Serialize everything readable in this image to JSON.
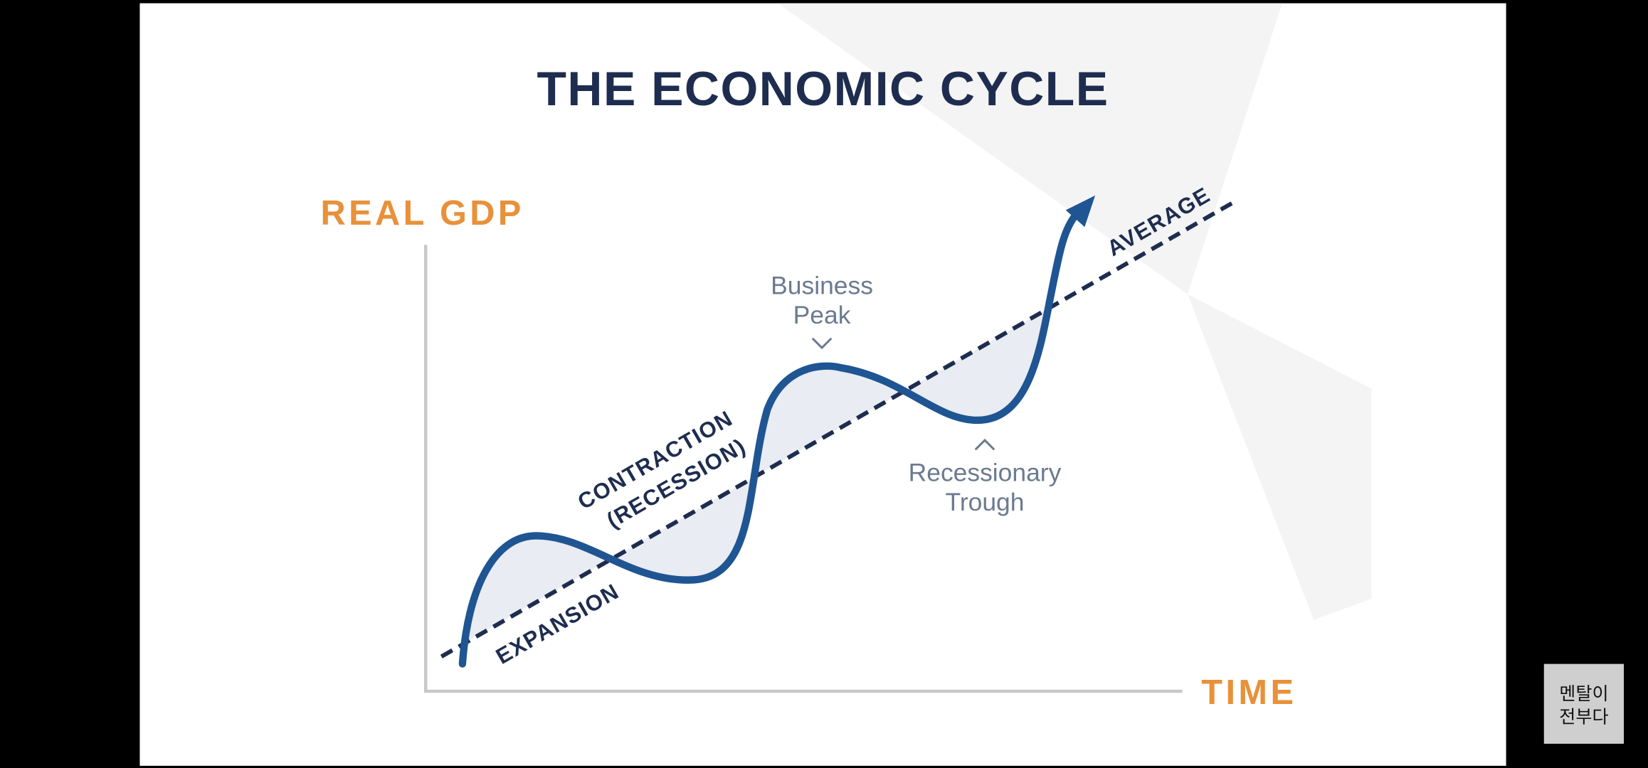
{
  "slide": {
    "title": "THE ECONOMIC CYCLE",
    "y_axis_label": "REAL GDP",
    "x_axis_label": "TIME",
    "trend_label": "AVERAGE",
    "phases": [
      "EXPANSION",
      "CONTRACTION",
      "(RECESSION)"
    ],
    "annotations": [
      {
        "lines": [
          "Business",
          "Peak"
        ]
      },
      {
        "lines": [
          "Recessionary",
          "Trough"
        ]
      }
    ]
  },
  "watermark": {
    "lines": [
      "멘탈이",
      "전부다"
    ]
  }
}
